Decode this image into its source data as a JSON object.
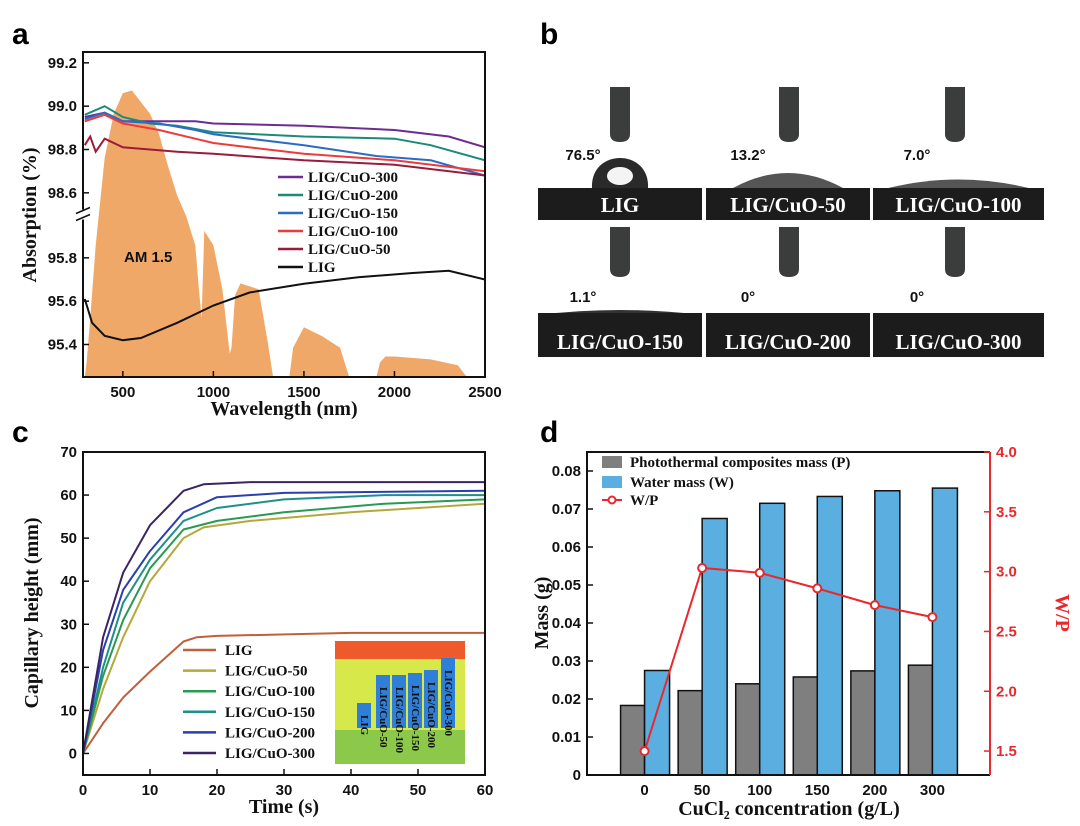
{
  "panel_labels": {
    "a": "a",
    "b": "b",
    "c": "c",
    "d": "d"
  },
  "contact_angle_images": [
    {
      "sample": "LIG",
      "angle": "76.5°"
    },
    {
      "sample": "LIG/CuO-50",
      "angle": "13.2°"
    },
    {
      "sample": "LIG/CuO-100",
      "angle": "7.0°"
    },
    {
      "sample": "LIG/CuO-150",
      "angle": "1.1°"
    },
    {
      "sample": "LIG/CuO-200",
      "angle": "0°"
    },
    {
      "sample": "LIG/CuO-300",
      "angle": "0°"
    }
  ],
  "chart_data": [
    {
      "panel": "a",
      "type": "line",
      "xlabel": "Wavelength (nm)",
      "ylabel": "Absorption (%)",
      "xlim": [
        280,
        2500
      ],
      "xticks": [
        500,
        1000,
        1500,
        2000,
        2500
      ],
      "y_axis_break": true,
      "ylim_lower": [
        95.25,
        96.0
      ],
      "ylim_upper": [
        98.5,
        99.25
      ],
      "yticks_lower": [
        95.4,
        95.6,
        95.8
      ],
      "yticks_upper": [
        98.6,
        98.8,
        99.0,
        99.2
      ],
      "legend_position": "center-right",
      "annotation": "AM 1.5",
      "am15_color": "#f0a868",
      "am15_relative_irradiance": {
        "x": [
          290,
          300,
          320,
          350,
          400,
          450,
          500,
          550,
          600,
          650,
          700,
          750,
          800,
          850,
          900,
          920,
          935,
          950,
          1000,
          1050,
          1090,
          1100,
          1120,
          1150,
          1250,
          1300,
          1330,
          1420,
          1440,
          1500,
          1600,
          1700,
          1750,
          1900,
          1920,
          1950,
          2000,
          2200,
          2350,
          2400
        ],
        "y": [
          0,
          0.05,
          0.2,
          0.45,
          0.75,
          0.9,
          0.97,
          0.98,
          0.94,
          0.9,
          0.83,
          0.72,
          0.62,
          0.55,
          0.45,
          0.3,
          0.2,
          0.5,
          0.45,
          0.3,
          0.08,
          0.1,
          0.28,
          0.32,
          0.3,
          0.12,
          0,
          0,
          0.1,
          0.17,
          0.14,
          0.1,
          0,
          0,
          0.05,
          0.07,
          0.07,
          0.06,
          0.04,
          0
        ]
      },
      "series": [
        {
          "name": "LIG/CuO-300",
          "color": "#6b2d92",
          "x": [
            290,
            400,
            500,
            700,
            900,
            1000,
            1500,
            2000,
            2300,
            2500
          ],
          "y": [
            98.95,
            98.97,
            98.93,
            98.93,
            98.93,
            98.92,
            98.91,
            98.89,
            98.86,
            98.81
          ]
        },
        {
          "name": "LIG/CuO-200",
          "color": "#1b8a7a",
          "x": [
            290,
            400,
            500,
            650,
            800,
            1000,
            1500,
            2000,
            2200,
            2500
          ],
          "y": [
            98.96,
            99.0,
            98.95,
            98.92,
            98.91,
            98.88,
            98.86,
            98.85,
            98.82,
            98.75
          ]
        },
        {
          "name": "LIG/CuO-150",
          "color": "#2b6cc4",
          "x": [
            290,
            400,
            500,
            700,
            900,
            1000,
            1500,
            1900,
            2200,
            2500
          ],
          "y": [
            98.94,
            98.97,
            98.93,
            98.92,
            98.89,
            98.87,
            98.82,
            98.77,
            98.75,
            98.68
          ]
        },
        {
          "name": "LIG/CuO-100",
          "color": "#ee3a3c",
          "x": [
            290,
            400,
            500,
            700,
            900,
            1000,
            1500,
            2000,
            2500
          ],
          "y": [
            98.93,
            98.96,
            98.92,
            98.89,
            98.85,
            98.83,
            98.78,
            98.75,
            98.7
          ]
        },
        {
          "name": "LIG/CuO-50",
          "color": "#9b1b3c",
          "x": [
            290,
            320,
            350,
            400,
            500,
            650,
            800,
            1000,
            1500,
            2000,
            2500
          ],
          "y": [
            98.82,
            98.86,
            98.79,
            98.85,
            98.81,
            98.8,
            98.79,
            98.78,
            98.75,
            98.73,
            98.68
          ]
        },
        {
          "name": "LIG",
          "color": "#111111",
          "x": [
            290,
            330,
            400,
            500,
            600,
            800,
            1000,
            1200,
            1500,
            1800,
            2100,
            2300,
            2500
          ],
          "y": [
            95.61,
            95.5,
            95.44,
            95.42,
            95.43,
            95.5,
            95.58,
            95.64,
            95.68,
            95.71,
            95.73,
            95.74,
            95.7
          ]
        }
      ]
    },
    {
      "panel": "c",
      "type": "line",
      "xlabel": "Time (s)",
      "ylabel": "Capillary height (mm)",
      "xlim": [
        0,
        60
      ],
      "ylim": [
        -5,
        70
      ],
      "xticks": [
        0,
        10,
        20,
        30,
        40,
        50,
        60
      ],
      "yticks": [
        0,
        10,
        20,
        30,
        40,
        50,
        60,
        70
      ],
      "legend_position": "bottom-center",
      "inset_labels": [
        "LIG",
        "LIG/CuO-50",
        "LIG/CuO-100",
        "LIG/CuO-150",
        "LIG/CuO-200",
        "LIG/CuO-300"
      ],
      "series": [
        {
          "name": "LIG",
          "color": "#c0603a",
          "x": [
            0,
            3,
            6,
            10,
            15,
            17,
            20,
            40,
            60
          ],
          "y": [
            0,
            7,
            13,
            19,
            26,
            27,
            27.3,
            28,
            28
          ]
        },
        {
          "name": "LIG/CuO-50",
          "color": "#b5a83a",
          "x": [
            0,
            3,
            6,
            10,
            15,
            18,
            25,
            40,
            60
          ],
          "y": [
            0,
            15,
            27,
            40,
            50,
            52.5,
            54,
            56,
            58
          ]
        },
        {
          "name": "LIG/CuO-100",
          "color": "#2a9a50",
          "x": [
            0,
            3,
            6,
            10,
            15,
            20,
            30,
            45,
            60
          ],
          "y": [
            0,
            18,
            31,
            43,
            52,
            54,
            56,
            58,
            59
          ]
        },
        {
          "name": "LIG/CuO-150",
          "color": "#1f8f8a",
          "x": [
            0,
            3,
            6,
            10,
            15,
            20,
            30,
            45,
            60
          ],
          "y": [
            0,
            20,
            35,
            45,
            54,
            57,
            59,
            60,
            60
          ]
        },
        {
          "name": "LIG/CuO-200",
          "color": "#2a3fae",
          "x": [
            0,
            3,
            6,
            10,
            15,
            20,
            30,
            60
          ],
          "y": [
            0,
            24,
            38,
            47,
            56,
            59.5,
            60.5,
            61
          ]
        },
        {
          "name": "LIG/CuO-300",
          "color": "#3a2560",
          "x": [
            0,
            3,
            6,
            10,
            15,
            18,
            25,
            60
          ],
          "y": [
            0,
            27,
            42,
            53,
            61,
            62.5,
            63,
            63
          ]
        }
      ]
    },
    {
      "panel": "d",
      "type": "bar",
      "xlabel": "CuCl₂ concentration (g/L)",
      "ylabel": "Mass (g)",
      "ylabel_right": "W/P",
      "categories": [
        "0",
        "50",
        "100",
        "150",
        "200",
        "300"
      ],
      "ylim": [
        0,
        0.085
      ],
      "ylim_right": [
        1.3,
        4.0
      ],
      "yticks": [
        0,
        0.01,
        0.02,
        0.03,
        0.04,
        0.05,
        0.06,
        0.07,
        0.08
      ],
      "yticks_labels": [
        "0",
        "0.01",
        "0.02",
        "0.03",
        "0.04",
        "0.05",
        "0.06",
        "0.07",
        "0.08"
      ],
      "yticks_right": [
        1.5,
        2.0,
        2.5,
        3.0,
        3.5,
        4.0
      ],
      "yticks_right_labels": [
        "1.5",
        "2.0",
        "2.5",
        "3.0",
        "3.5",
        "4.0"
      ],
      "legend_position": "top-left",
      "right_axis_color": "#e8282c",
      "series": [
        {
          "name": "Photothermal composites mass (P)",
          "kind": "bar",
          "axis": "left",
          "color": "#7f7f7f",
          "values": [
            0.0183,
            0.0222,
            0.024,
            0.0258,
            0.0274,
            0.0289
          ]
        },
        {
          "name": "Water mass (W)",
          "kind": "bar",
          "axis": "left",
          "color": "#5aafe0",
          "values": [
            0.0275,
            0.0675,
            0.0715,
            0.0733,
            0.0748,
            0.0755
          ]
        },
        {
          "name": "W/P",
          "kind": "line",
          "axis": "right",
          "color": "#e8282c",
          "values": [
            1.5,
            3.03,
            2.99,
            2.86,
            2.72,
            2.62
          ]
        }
      ]
    }
  ]
}
